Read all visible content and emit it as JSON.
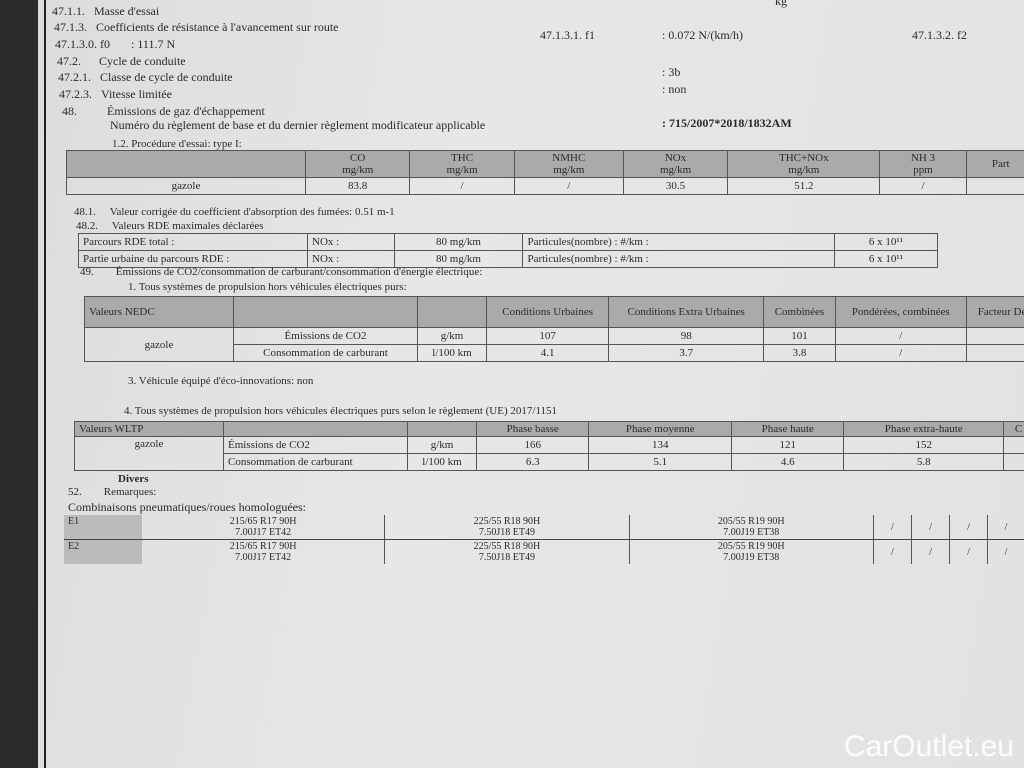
{
  "lines": {
    "l1": "47.1.1.",
    "l1t": "Masse d'essai",
    "l1v": "kg",
    "l2": "47.1.3.",
    "l2t": "Coefficients de résistance à l'avancement sur route",
    "l3": "47.1.3.0. f0",
    "l3v": ": 111.7 N",
    "l3b": "47.1.3.1. f1",
    "l3bv": ": 0.072 N/(km/h)",
    "l3c": "47.1.3.2. f2",
    "l4": "47.2.",
    "l4t": "Cycle de conduite",
    "l5": "47.2.1.",
    "l5t": "Classe de cycle de conduite",
    "l5v": ": 3b",
    "l6": "47.2.3.",
    "l6t": "Vitesse limitée",
    "l6v": ": non",
    "l7": "48.",
    "l7t": "Émissions de gaz d'échappement",
    "l8t": "Numéro du règlement de base et du dernier règlement modificateur applicable",
    "l8v": ": 715/2007*2018/1832AM",
    "l9": "1.2. Procédure d'essai: type I:"
  },
  "type1": {
    "headers": [
      [
        "CO",
        "mg/km"
      ],
      [
        "THC",
        "mg/km"
      ],
      [
        "NMHC",
        "mg/km"
      ],
      [
        "NOx",
        "mg/km"
      ],
      [
        "THC+NOx",
        "mg/km"
      ],
      [
        "NH 3",
        "ppm"
      ],
      [
        "Part",
        ""
      ]
    ],
    "fuel": "gazole",
    "values": [
      "83.8",
      "/",
      "/",
      "30.5",
      "51.2",
      "/",
      ""
    ]
  },
  "s481": {
    "num": "48.1.",
    "text": "Valeur corrigée du coefficient d'absorption des fumées: 0.51 m-1"
  },
  "s482": {
    "num": "48.2.",
    "text": "Valeurs RDE maximales déclarées"
  },
  "rde": [
    {
      "label": "Parcours RDE total :",
      "nox": "NOx :",
      "noxv": "80 mg/km",
      "part": "Particules(nombre) : #/km :",
      "partv": "6 x 10¹¹"
    },
    {
      "label": "Partie urbaine du parcours RDE   :",
      "nox": "NOx :",
      "noxv": "80 mg/km",
      "part": "Particules(nombre) : #/km :",
      "partv": "6 x 10¹¹"
    }
  ],
  "s49": {
    "num": "49.",
    "text": "Émissions de CO2/consommation de carburant/consommation d'énergie électrique:",
    "sub1": "1. Tous systèmes de propulsion hors véhicules électriques purs:"
  },
  "nedc": {
    "title": "Valeurs NEDC",
    "headers": [
      "Conditions Urbaines",
      "Conditions Extra Urbaines",
      "Combinées",
      "Pondérées, combinées",
      "Facteur Dév"
    ],
    "fuel": "gazole",
    "rows": [
      {
        "label": "Émissions de CO2",
        "unit": "g/km",
        "v": [
          "107",
          "98",
          "101",
          "/",
          ""
        ]
      },
      {
        "label": "Consommation de carburant",
        "unit": "l/100 km",
        "v": [
          "4.1",
          "3.7",
          "3.8",
          "/",
          ""
        ]
      }
    ]
  },
  "eco": "3. Véhicule équipé d'éco-innovations: non",
  "sub4": "4. Tous systèmes de propulsion hors véhicules électriques purs selon le règlement (UE) 2017/1151",
  "wltp": {
    "title": "Valeurs WLTP",
    "headers": [
      "Phase basse",
      "Phase moyenne",
      "Phase haute",
      "Phase extra-haute",
      "C"
    ],
    "fuel": "gazole",
    "rows": [
      {
        "label": "Émissions de CO2",
        "unit": "g/km",
        "v": [
          "166",
          "134",
          "121",
          "152",
          ""
        ]
      },
      {
        "label": "Consommation de carburant",
        "unit": "l/100 km",
        "v": [
          "6.3",
          "5.1",
          "4.6",
          "5.8",
          ""
        ]
      }
    ]
  },
  "divers": "Divers",
  "s52": {
    "num": "52.",
    "text": "Remarques:"
  },
  "tyres": {
    "title": "Combinaisons pneumatiques/roues homologuées:",
    "rows": [
      {
        "id": "E1",
        "c": [
          [
            "215/65 R17 90H",
            "7.00J17 ET42"
          ],
          [
            "225/55 R18 90H",
            "7.50J18 ET49"
          ],
          [
            "205/55 R19 90H",
            "7.00J19 ET38"
          ]
        ]
      },
      {
        "id": "E2",
        "c": [
          [
            "215/65 R17 90H",
            "7.00J17 ET42"
          ],
          [
            "225/55 R18 90H",
            "7.50J18 ET49"
          ],
          [
            "205/55 R19 90H",
            "7.00J19 ET38"
          ]
        ]
      }
    ],
    "slash": "/"
  },
  "watermark": "CarOutlet.eu"
}
